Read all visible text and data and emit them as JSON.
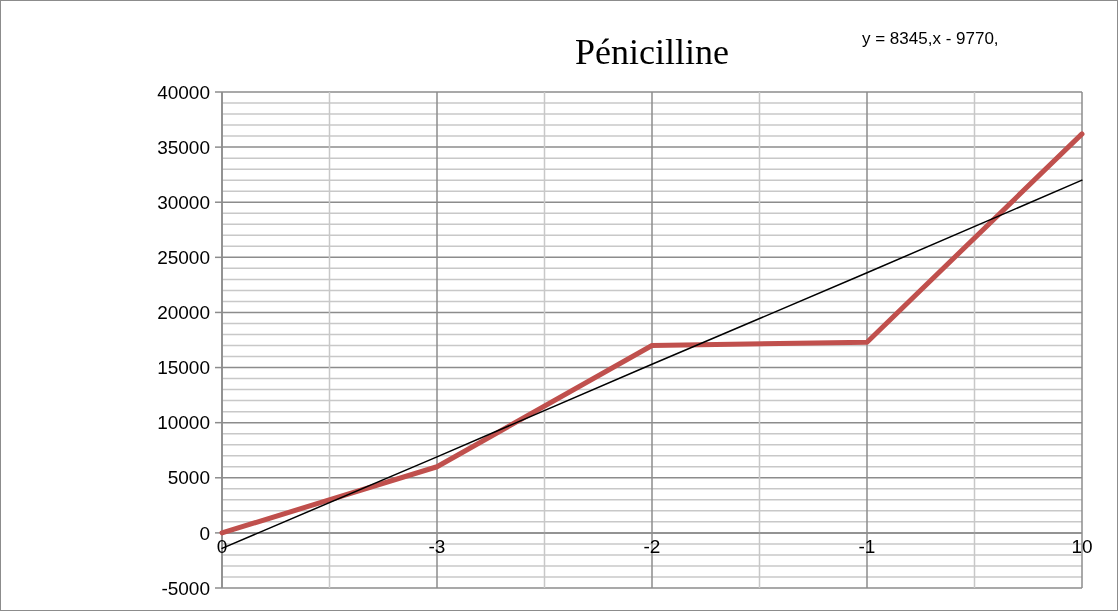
{
  "chart_data": {
    "type": "line",
    "title": "Pénicilline",
    "categories": [
      "0",
      "-3",
      "-2",
      "-1",
      "10"
    ],
    "series": [
      {
        "color": "#c0504d",
        "values": [
          0,
          6000,
          17000,
          17300,
          36200
        ]
      },
      {
        "color": "#000000",
        "values": [
          -1400,
          6900,
          15300,
          23600,
          32000
        ]
      }
    ],
    "ylim": [
      -5000,
      40000
    ],
    "yticks": [
      -5000,
      0,
      5000,
      10000,
      15000,
      20000,
      25000,
      30000,
      35000,
      40000
    ],
    "grid": true,
    "annotations": [
      "y = 8345,x - 9770,"
    ]
  }
}
